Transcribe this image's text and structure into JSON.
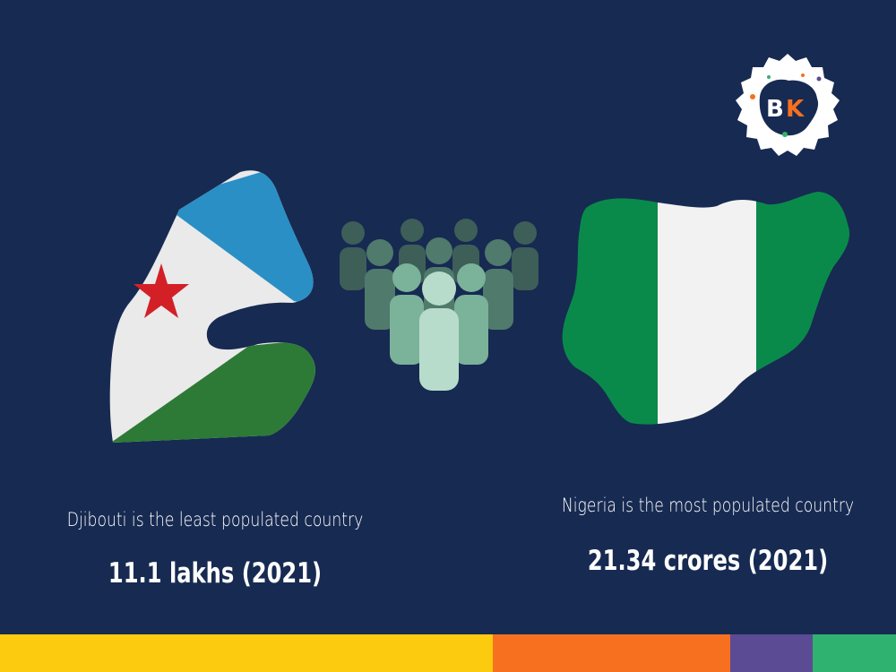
{
  "logo": {
    "text_b": "B",
    "text_k": "K",
    "icon": "bk-badge-logo"
  },
  "left": {
    "caption": "Djibouti is the least populated country",
    "value": "11.1 lakhs (2021)",
    "icon": "djibouti-flag-map"
  },
  "center": {
    "icon": "crowd-of-people-icon"
  },
  "right": {
    "caption": "Nigeria is the most populated country",
    "value": "21.34 crores (2021)",
    "icon": "nigeria-flag-map"
  },
  "colors": {
    "background": "#172a52",
    "djibouti_blue": "#2a8fc4",
    "djibouti_green": "#2c7a36",
    "djibouti_star": "#d32027",
    "nigeria_green": "#0a8a4a",
    "footer_yellow": "#fccb0f",
    "footer_orange": "#f6701f",
    "footer_purple": "#5b4a94",
    "footer_green": "#2fb26f"
  }
}
